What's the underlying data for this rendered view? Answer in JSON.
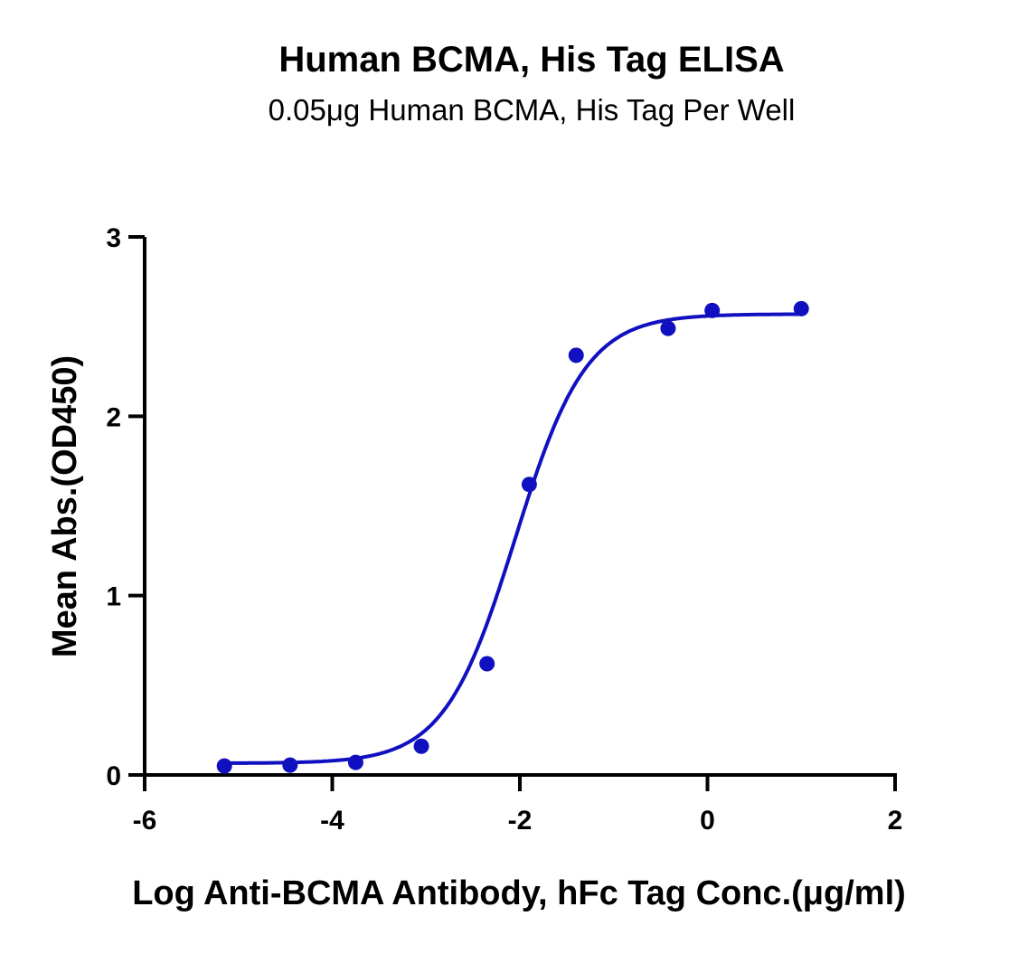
{
  "chart_data": {
    "type": "scatter",
    "title": "Human BCMA, His Tag ELISA",
    "subtitle": "0.05μg Human BCMA, His Tag Per Well",
    "xlabel": "Log Anti-BCMA Antibody, hFc Tag Conc.(μg/ml)",
    "ylabel": "Mean Abs.(OD450)",
    "xlim": [
      -6,
      2
    ],
    "ylim": [
      0,
      3
    ],
    "xticks": [
      "-6",
      "-4",
      "-2",
      "0",
      "2"
    ],
    "yticks": [
      "0",
      "1",
      "2",
      "3"
    ],
    "grid": false,
    "series": [
      {
        "x": [
          -5.15,
          -4.45,
          -3.75,
          -3.05,
          -2.35,
          -1.9,
          -1.4,
          -0.42,
          0.05,
          1.0
        ],
        "y": [
          0.05,
          0.055,
          0.07,
          0.16,
          0.62,
          1.62,
          2.34,
          2.49,
          2.59,
          2.6
        ],
        "fit": {
          "bottom": 0.065,
          "top": 2.57,
          "logEC50": -2.05,
          "hill": 1.15
        }
      }
    ],
    "color": "#1010c0"
  }
}
